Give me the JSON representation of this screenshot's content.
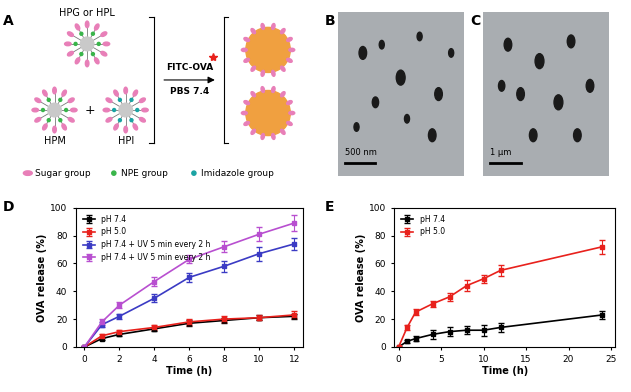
{
  "panel_labels": [
    "A",
    "B",
    "C",
    "D",
    "E"
  ],
  "diagram": {
    "polymers": [
      "HPG or HPL",
      "HPM",
      "HPI"
    ],
    "plus": "+",
    "reagent": "FITC-OVA",
    "buffer": "PBS 7.4",
    "key_items": [
      "Sugar group",
      "NPE group",
      "Imidazole group"
    ]
  },
  "micrographs": [
    {
      "scale_bar": "500 nm"
    },
    {
      "scale_bar": "1 μm"
    }
  ],
  "chart_data": [
    {
      "type": "line",
      "xlabel": "Time (h)",
      "ylabel": "OVA release (%)",
      "x": [
        0,
        1,
        2,
        4,
        6,
        8,
        10,
        12
      ],
      "xlim": [
        -0.5,
        12.5
      ],
      "xticks": [
        0,
        2,
        4,
        6,
        8,
        10,
        12
      ],
      "ylim": [
        0,
        100
      ],
      "yticks": [
        0,
        20,
        40,
        60,
        80,
        100
      ],
      "legend": "upper left",
      "marker": "square",
      "series": [
        {
          "name": "pH 7.4",
          "color": "#000000",
          "values": [
            0,
            6,
            9,
            13,
            17,
            19,
            21,
            22
          ],
          "error": [
            0,
            1,
            1,
            1.5,
            2,
            2,
            2,
            2
          ]
        },
        {
          "name": "pH 5.0",
          "color": "#e8211c",
          "values": [
            0,
            8,
            11,
            14,
            18,
            20,
            21,
            23
          ],
          "error": [
            0,
            1,
            1.5,
            1.5,
            2,
            2,
            2,
            2.5
          ]
        },
        {
          "name": "pH 7.4 + UV 5 min every 2 h",
          "color": "#3b3bc4",
          "values": [
            0,
            16,
            22,
            35,
            50,
            58,
            67,
            74
          ],
          "error": [
            0,
            2,
            2,
            3,
            3,
            4,
            5,
            4
          ]
        },
        {
          "name": "pH 7.4 + UV 5 min every 2 h",
          "color": "#b84fd0",
          "values": [
            0,
            18,
            30,
            47,
            63,
            72,
            81,
            89
          ],
          "error": [
            0,
            2,
            2,
            3,
            3,
            4,
            5,
            6
          ]
        }
      ]
    },
    {
      "type": "line",
      "xlabel": "Time (h)",
      "ylabel": "OVA release (%)",
      "x": [
        0,
        1,
        2,
        4,
        6,
        8,
        10,
        12,
        24
      ],
      "xlim": [
        -0.5,
        25.5
      ],
      "xticks": [
        0,
        5,
        10,
        15,
        20,
        25
      ],
      "ylim": [
        0,
        100
      ],
      "yticks": [
        0,
        20,
        40,
        60,
        80,
        100
      ],
      "legend": "upper left",
      "marker": "square",
      "series": [
        {
          "name": "pH 7.4",
          "color": "#000000",
          "values": [
            0,
            4,
            6,
            9,
            11,
            12,
            12,
            14,
            23
          ],
          "error": [
            0,
            1,
            2,
            3,
            3,
            3,
            4,
            3,
            3
          ]
        },
        {
          "name": "pH 5.0",
          "color": "#e8211c",
          "values": [
            0,
            14,
            25,
            31,
            36,
            44,
            49,
            55,
            72
          ],
          "error": [
            0,
            2,
            2,
            2,
            3,
            4,
            3,
            4,
            5
          ]
        }
      ]
    }
  ]
}
